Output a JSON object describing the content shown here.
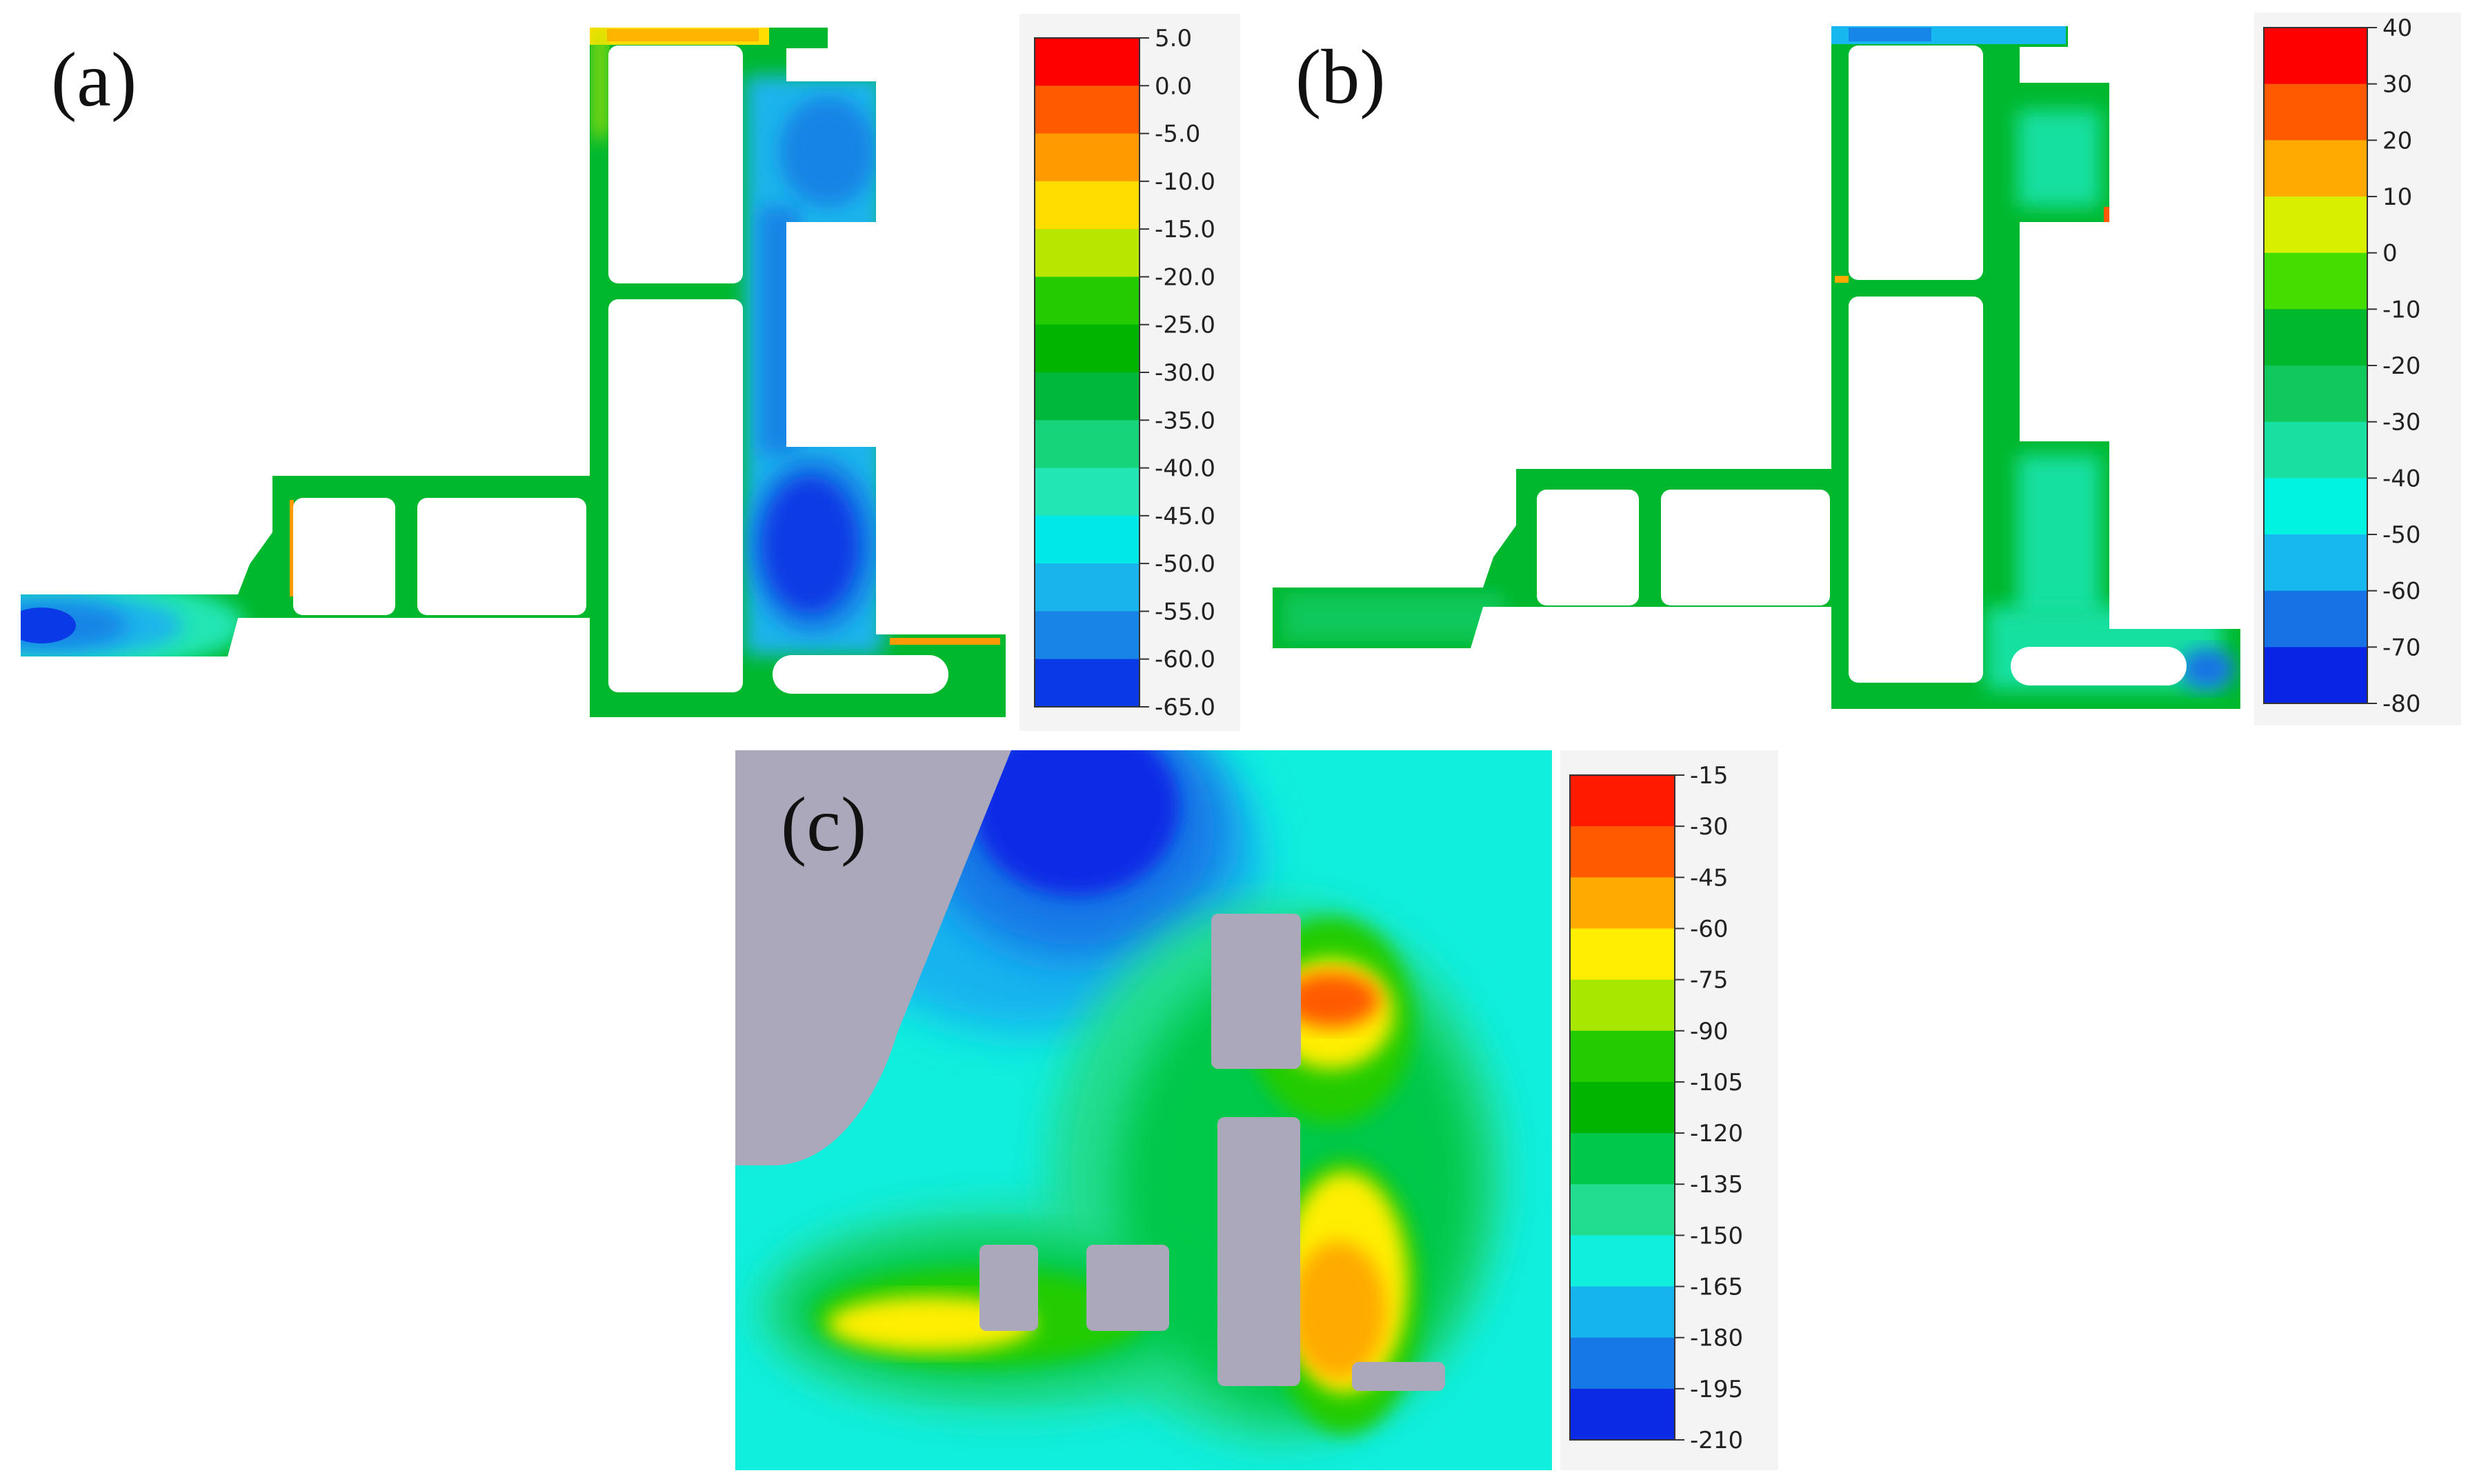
{
  "panels": [
    {
      "label": "(a)",
      "colorbar": {
        "ticks": [
          "5.0",
          "0.0",
          "-5.0",
          "-10.0",
          "-15.0",
          "-20.0",
          "-25.0",
          "-30.0",
          "-35.0",
          "-40.0",
          "-45.0",
          "-50.0",
          "-55.0",
          "-60.0",
          "-65.0"
        ],
        "colors": [
          "#ff0000",
          "#ff5a00",
          "#ff9a00",
          "#ffdd00",
          "#b8e600",
          "#22cc00",
          "#00b400",
          "#00b83a",
          "#16d47a",
          "#22e6b4",
          "#00e8e8",
          "#1ab4ec",
          "#1784e6",
          "#0a3ae6"
        ]
      }
    },
    {
      "label": "(b)",
      "colorbar": {
        "ticks": [
          "40",
          "30",
          "20",
          "10",
          "0",
          "-10",
          "-20",
          "-30",
          "-40",
          "-50",
          "-60",
          "-70",
          "-80"
        ],
        "colors": [
          "#ff0000",
          "#ff5a00",
          "#ffaa00",
          "#d8f000",
          "#44dd00",
          "#00b82e",
          "#10c85c",
          "#18e0a0",
          "#00f2e0",
          "#16b8ef",
          "#1772e6",
          "#0a24e6"
        ]
      }
    },
    {
      "label": "(c)",
      "colorbar": {
        "ticks": [
          "-15",
          "-30",
          "-45",
          "-60",
          "-75",
          "-90",
          "-105",
          "-120",
          "-135",
          "-150",
          "-165",
          "-180",
          "-195",
          "-210"
        ],
        "colors": [
          "#ff1a00",
          "#ff5a00",
          "#ffaa00",
          "#ffee00",
          "#a8e800",
          "#22cc00",
          "#00b400",
          "#00c84a",
          "#22dc90",
          "#10eede",
          "#16b4ef",
          "#1578e6",
          "#0a2ae6"
        ]
      }
    }
  ],
  "colors": {
    "frame_green": "#00b82e",
    "cyan": "#00e8e8",
    "blue": "#1784e6",
    "deep_blue": "#0a3ae6",
    "obstacle_gray": "#aaa8ba",
    "background": "#ffffff"
  }
}
